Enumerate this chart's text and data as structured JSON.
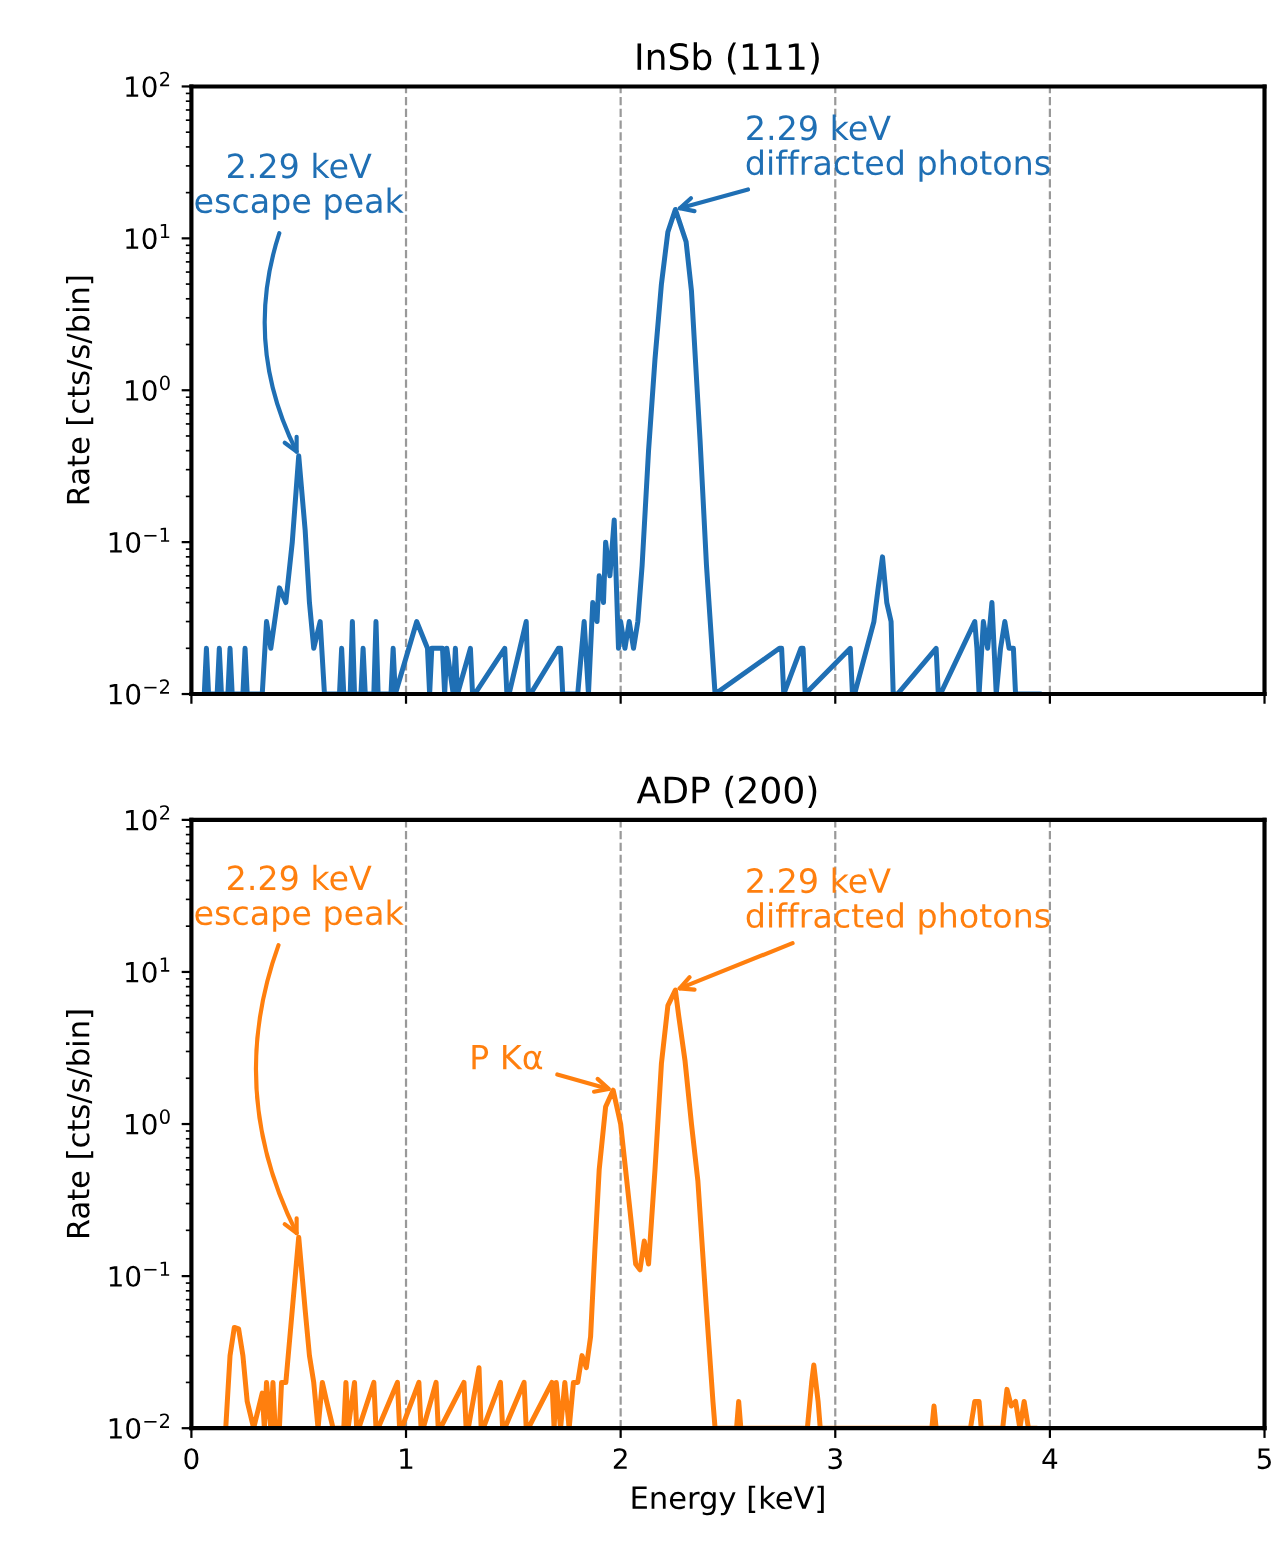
{
  "chart_data": [
    {
      "type": "line",
      "title": "InSb (111)",
      "ylabel": "Rate [cts/s/bin]",
      "log": "y",
      "grid": "x",
      "tick_labels": "y",
      "xlim": [
        0,
        5
      ],
      "xticks": [
        0,
        1,
        2,
        3,
        4,
        5
      ],
      "ylim": [
        0.01,
        100
      ],
      "yticks": [
        {
          "value": 0.01,
          "label": "10$^{−2}$"
        },
        {
          "value": 0.1,
          "label": "10$^{−1}$"
        },
        {
          "value": 1,
          "label": "10$^{0}$"
        },
        {
          "value": 10,
          "label": "10$^{1}$"
        },
        {
          "value": 100,
          "label": "10$^{2}$"
        }
      ],
      "series": [
        {
          "color": "#1f6fb4",
          "x": [
            0.06,
            0.07,
            0.08,
            0.12,
            0.13,
            0.14,
            0.17,
            0.18,
            0.19,
            0.24,
            0.25,
            0.26,
            0.33,
            0.35,
            0.37,
            0.41,
            0.44,
            0.47,
            0.5,
            0.53,
            0.55,
            0.57,
            0.6,
            0.62,
            0.69,
            0.7,
            0.71,
            0.74,
            0.75,
            0.76,
            0.79,
            0.8,
            0.81,
            0.85,
            0.86,
            0.87,
            0.93,
            0.94,
            0.95,
            1.05,
            1.1,
            1.11,
            1.12,
            1.17,
            1.18,
            1.19,
            1.22,
            1.23,
            1.24,
            1.3,
            1.31,
            1.32,
            1.46,
            1.47,
            1.48,
            1.56,
            1.57,
            1.58,
            1.71,
            1.72,
            1.73,
            1.75,
            1.8,
            1.83,
            1.85,
            1.87,
            1.89,
            1.9,
            1.92,
            1.93,
            1.95,
            1.97,
            1.99,
            2.0,
            2.02,
            2.04,
            2.06,
            2.08,
            2.1,
            2.13,
            2.16,
            2.19,
            2.22,
            2.255,
            2.305,
            2.33,
            2.37,
            2.4,
            2.44,
            2.74,
            2.75,
            2.76,
            2.84,
            2.85,
            2.86,
            3.07,
            3.08,
            3.09,
            3.18,
            3.2,
            3.22,
            3.24,
            3.26,
            3.27,
            3.29,
            3.47,
            3.48,
            3.49,
            3.65,
            3.66,
            3.67,
            3.69,
            3.71,
            3.73,
            3.75,
            3.77,
            3.79,
            3.81,
            3.83,
            3.84,
            3.95
          ],
          "values": [
            0.01,
            0.02,
            0.01,
            0.01,
            0.02,
            0.01,
            0.01,
            0.02,
            0.01,
            0.01,
            0.02,
            0.01,
            0.01,
            0.03,
            0.02,
            0.05,
            0.04,
            0.1,
            0.37,
            0.12,
            0.04,
            0.02,
            0.03,
            0.01,
            0.01,
            0.02,
            0.01,
            0.01,
            0.03,
            0.01,
            0.01,
            0.02,
            0.01,
            0.01,
            0.03,
            0.01,
            0.01,
            0.02,
            0.01,
            0.03,
            0.02,
            0.01,
            0.02,
            0.02,
            0.01,
            0.02,
            0.01,
            0.02,
            0.01,
            0.02,
            0.01,
            0.01,
            0.02,
            0.01,
            0.01,
            0.03,
            0.01,
            0.01,
            0.02,
            0.02,
            0.01,
            0.01,
            0.01,
            0.03,
            0.01,
            0.04,
            0.03,
            0.06,
            0.04,
            0.1,
            0.06,
            0.14,
            0.02,
            0.03,
            0.02,
            0.03,
            0.02,
            0.03,
            0.07,
            0.4,
            1.6,
            5,
            11,
            15.5,
            9.5,
            4.5,
            0.47,
            0.07,
            0.01,
            0.02,
            0.02,
            0.01,
            0.02,
            0.02,
            0.01,
            0.02,
            0.01,
            0.01,
            0.03,
            0.05,
            0.08,
            0.04,
            0.03,
            0.01,
            0.01,
            0.02,
            0.01,
            0.01,
            0.03,
            0.02,
            0.01,
            0.03,
            0.02,
            0.04,
            0.01,
            0.02,
            0.03,
            0.02,
            0.02,
            0.01,
            0.01
          ]
        }
      ],
      "annotations": [
        {
          "text": "2.29 keV\nescape peak",
          "x": 0.5,
          "y": 0.37
        },
        {
          "text": "2.29 keV\ndiffracted photons",
          "x": 2.255,
          "y": 15.5
        }
      ]
    },
    {
      "type": "line",
      "title": "ADP (200)",
      "xlabel": "Energy [keV]",
      "ylabel": "Rate [cts/s/bin]",
      "log": "y",
      "grid": "x",
      "xlim": [
        0,
        5
      ],
      "xticks": [
        0,
        1,
        2,
        3,
        4,
        5
      ],
      "ylim": [
        0.01,
        100
      ],
      "yticks": [
        {
          "value": 0.01,
          "label": "10$^{−2}$"
        },
        {
          "value": 0.1,
          "label": "10$^{−1}$"
        },
        {
          "value": 1,
          "label": "10$^{0}$"
        },
        {
          "value": 10,
          "label": "10$^{1}$"
        },
        {
          "value": 100,
          "label": "10$^{2}$"
        }
      ],
      "series": [
        {
          "color": "#ff7f0e",
          "x": [
            0.16,
            0.18,
            0.2,
            0.22,
            0.24,
            0.26,
            0.29,
            0.33,
            0.34,
            0.35,
            0.37,
            0.38,
            0.39,
            0.41,
            0.42,
            0.44,
            0.47,
            0.5,
            0.53,
            0.55,
            0.57,
            0.59,
            0.61,
            0.63,
            0.66,
            0.71,
            0.72,
            0.73,
            0.76,
            0.77,
            0.78,
            0.85,
            0.86,
            0.87,
            0.96,
            0.97,
            0.98,
            1.06,
            1.07,
            1.08,
            1.14,
            1.15,
            1.16,
            1.27,
            1.28,
            1.29,
            1.34,
            1.35,
            1.36,
            1.44,
            1.45,
            1.46,
            1.55,
            1.56,
            1.57,
            1.68,
            1.69,
            1.7,
            1.72,
            1.74,
            1.76,
            1.78,
            1.8,
            1.82,
            1.84,
            1.86,
            1.88,
            1.9,
            1.93,
            1.965,
            2.0,
            2.04,
            2.07,
            2.09,
            2.11,
            2.13,
            2.16,
            2.19,
            2.22,
            2.255,
            2.27,
            2.3,
            2.33,
            2.36,
            2.4,
            2.43,
            2.44,
            2.54,
            2.55,
            2.56,
            2.87,
            2.89,
            2.9,
            2.92,
            2.93,
            3.45,
            3.46,
            3.47,
            3.63,
            3.65,
            3.67,
            3.68,
            3.78,
            3.8,
            3.82,
            3.84,
            3.86,
            3.88,
            3.9,
            3.93
          ],
          "values": [
            0.01,
            0.03,
            0.046,
            0.045,
            0.03,
            0.015,
            0.01,
            0.017,
            0.01,
            0.02,
            0.01,
            0.02,
            0.01,
            0.01,
            0.02,
            0.02,
            0.06,
            0.18,
            0.06,
            0.03,
            0.02,
            0.01,
            0.02,
            0.015,
            0.01,
            0.01,
            0.02,
            0.01,
            0.02,
            0.01,
            0.01,
            0.02,
            0.01,
            0.01,
            0.02,
            0.01,
            0.01,
            0.02,
            0.01,
            0.01,
            0.02,
            0.01,
            0.01,
            0.02,
            0.01,
            0.01,
            0.025,
            0.01,
            0.01,
            0.02,
            0.01,
            0.01,
            0.02,
            0.01,
            0.01,
            0.02,
            0.01,
            0.02,
            0.01,
            0.02,
            0.01,
            0.02,
            0.02,
            0.03,
            0.025,
            0.04,
            0.15,
            0.5,
            1.3,
            1.67,
            1.0,
            0.3,
            0.12,
            0.11,
            0.17,
            0.12,
            0.5,
            2.5,
            6,
            7.6,
            5.2,
            2.6,
            1.0,
            0.42,
            0.06,
            0.015,
            0.01,
            0.01,
            0.015,
            0.01,
            0.01,
            0.02,
            0.026,
            0.015,
            0.01,
            0.01,
            0.014,
            0.01,
            0.01,
            0.015,
            0.015,
            0.01,
            0.01,
            0.018,
            0.014,
            0.015,
            0.01,
            0.015,
            0.01,
            0.01
          ]
        }
      ],
      "annotations": [
        {
          "text": "2.29 keV\nescape peak",
          "x": 0.5,
          "y": 0.18
        },
        {
          "text": "P Kα",
          "x": 1.965,
          "y": 1.67
        },
        {
          "text": "2.29 keV\ndiffracted photons",
          "x": 2.255,
          "y": 7.6
        }
      ]
    }
  ]
}
